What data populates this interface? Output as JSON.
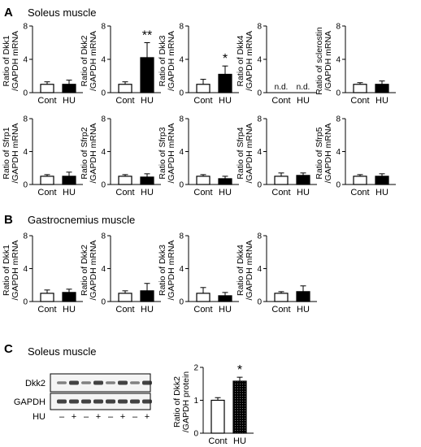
{
  "panels": [
    {
      "letter": "A",
      "title": "Soleus muscle"
    },
    {
      "letter": "B",
      "title": "Gastrocnemius muscle"
    },
    {
      "letter": "C",
      "title": "Soleus muscle"
    }
  ],
  "chart_data": [
    {
      "panel": "A",
      "type": "bar",
      "categories": [
        "Cont",
        "HU"
      ],
      "values": [
        1.0,
        1.0
      ],
      "errors": [
        0.3,
        0.5
      ],
      "ylim": [
        0,
        8
      ],
      "yticks": [
        0,
        4,
        8
      ],
      "ylabel": [
        "Ratio of Dkk1",
        "/GAPDH mRNA"
      ],
      "annotations": [
        "",
        ""
      ],
      "colors": [
        "#ffffff",
        "#000000"
      ]
    },
    {
      "panel": "A",
      "type": "bar",
      "categories": [
        "Cont",
        "HU"
      ],
      "values": [
        1.0,
        4.2
      ],
      "errors": [
        0.3,
        1.8
      ],
      "ylim": [
        0,
        8
      ],
      "yticks": [
        0,
        4,
        8
      ],
      "ylabel": [
        "Ratio of Dkk2",
        "/GAPDH mRNA"
      ],
      "annotations": [
        "",
        "**"
      ],
      "colors": [
        "#ffffff",
        "#000000"
      ]
    },
    {
      "panel": "A",
      "type": "bar",
      "categories": [
        "Cont",
        "HU"
      ],
      "values": [
        1.0,
        2.2
      ],
      "errors": [
        0.6,
        1.0
      ],
      "ylim": [
        0,
        8
      ],
      "yticks": [
        0,
        4,
        8
      ],
      "ylabel": [
        "Ratio of Dkk3",
        "/GAPDH mRNA"
      ],
      "annotations": [
        "",
        "*"
      ],
      "colors": [
        "#ffffff",
        "#000000"
      ]
    },
    {
      "panel": "A",
      "type": "bar",
      "categories": [
        "Cont",
        "HU"
      ],
      "values": [
        null,
        null
      ],
      "errors": [
        null,
        null
      ],
      "ylim": [
        0,
        8
      ],
      "yticks": [
        0,
        4,
        8
      ],
      "ylabel": [
        "Ratio of Dkk4",
        "/GAPDH mRNA"
      ],
      "annotations": [
        "n.d.",
        "n.d."
      ],
      "colors": [
        "#ffffff",
        "#000000"
      ]
    },
    {
      "panel": "A",
      "type": "bar",
      "categories": [
        "Cont",
        "HU"
      ],
      "values": [
        1.0,
        1.0
      ],
      "errors": [
        0.2,
        0.4
      ],
      "ylim": [
        0,
        8
      ],
      "yticks": [
        0,
        4,
        8
      ],
      "ylabel": [
        "Ratio of sclerostin",
        "/GAPDH mRNA"
      ],
      "annotations": [
        "",
        ""
      ],
      "colors": [
        "#ffffff",
        "#000000"
      ]
    },
    {
      "panel": "A",
      "type": "bar",
      "categories": [
        "Cont",
        "HU"
      ],
      "values": [
        1.0,
        1.0
      ],
      "errors": [
        0.2,
        0.5
      ],
      "ylim": [
        0,
        8
      ],
      "yticks": [
        0,
        4,
        8
      ],
      "ylabel": [
        "Ratio of Sfrp1",
        "/GAPDH mRNA"
      ],
      "annotations": [
        "",
        ""
      ],
      "colors": [
        "#ffffff",
        "#000000"
      ]
    },
    {
      "panel": "A",
      "type": "bar",
      "categories": [
        "Cont",
        "HU"
      ],
      "values": [
        1.0,
        0.9
      ],
      "errors": [
        0.2,
        0.4
      ],
      "ylim": [
        0,
        8
      ],
      "yticks": [
        0,
        4,
        8
      ],
      "ylabel": [
        "Ratio of Sfrp2",
        "/GAPDH mRNA"
      ],
      "annotations": [
        "",
        ""
      ],
      "colors": [
        "#ffffff",
        "#000000"
      ]
    },
    {
      "panel": "A",
      "type": "bar",
      "categories": [
        "Cont",
        "HU"
      ],
      "values": [
        1.0,
        0.7
      ],
      "errors": [
        0.2,
        0.3
      ],
      "ylim": [
        0,
        8
      ],
      "yticks": [
        0,
        4,
        8
      ],
      "ylabel": [
        "Ratio of Sfrp3",
        "/GAPDH mRNA"
      ],
      "annotations": [
        "",
        ""
      ],
      "colors": [
        "#ffffff",
        "#000000"
      ]
    },
    {
      "panel": "A",
      "type": "bar",
      "categories": [
        "Cont",
        "HU"
      ],
      "values": [
        1.0,
        1.1
      ],
      "errors": [
        0.4,
        0.3
      ],
      "ylim": [
        0,
        8
      ],
      "yticks": [
        0,
        4,
        8
      ],
      "ylabel": [
        "Ratio of Sfrp4",
        "/GAPDH mRNA"
      ],
      "annotations": [
        "",
        ""
      ],
      "colors": [
        "#ffffff",
        "#000000"
      ]
    },
    {
      "panel": "A",
      "type": "bar",
      "categories": [
        "Cont",
        "HU"
      ],
      "values": [
        1.0,
        1.0
      ],
      "errors": [
        0.2,
        0.3
      ],
      "ylim": [
        0,
        8
      ],
      "yticks": [
        0,
        4,
        8
      ],
      "ylabel": [
        "Ratio of Sfrp5",
        "/GAPDH mRNA"
      ],
      "annotations": [
        "",
        ""
      ],
      "colors": [
        "#ffffff",
        "#000000"
      ]
    },
    {
      "panel": "B",
      "type": "bar",
      "categories": [
        "Cont",
        "HU"
      ],
      "values": [
        1.0,
        1.1
      ],
      "errors": [
        0.4,
        0.4
      ],
      "ylim": [
        0,
        8
      ],
      "yticks": [
        0,
        4,
        8
      ],
      "ylabel": [
        "Ratio of Dkk1",
        "/GAPDH mRNA"
      ],
      "annotations": [
        "",
        ""
      ],
      "colors": [
        "#ffffff",
        "#000000"
      ]
    },
    {
      "panel": "B",
      "type": "bar",
      "categories": [
        "Cont",
        "HU"
      ],
      "values": [
        1.0,
        1.3
      ],
      "errors": [
        0.3,
        0.9
      ],
      "ylim": [
        0,
        8
      ],
      "yticks": [
        0,
        4,
        8
      ],
      "ylabel": [
        "Ratio of Dkk2",
        "/GAPDH mRNA"
      ],
      "annotations": [
        "",
        ""
      ],
      "colors": [
        "#ffffff",
        "#000000"
      ]
    },
    {
      "panel": "B",
      "type": "bar",
      "categories": [
        "Cont",
        "HU"
      ],
      "values": [
        1.0,
        0.7
      ],
      "errors": [
        0.7,
        0.4
      ],
      "ylim": [
        0,
        8
      ],
      "yticks": [
        0,
        4,
        8
      ],
      "ylabel": [
        "Ratio of Dkk3",
        "/GAPDH mRNA"
      ],
      "annotations": [
        "",
        ""
      ],
      "colors": [
        "#ffffff",
        "#000000"
      ]
    },
    {
      "panel": "B",
      "type": "bar",
      "categories": [
        "Cont",
        "HU"
      ],
      "values": [
        1.0,
        1.2
      ],
      "errors": [
        0.2,
        0.7
      ],
      "ylim": [
        0,
        8
      ],
      "yticks": [
        0,
        4,
        8
      ],
      "ylabel": [
        "Ratio of Dkk4",
        "/GAPDH mRNA"
      ],
      "annotations": [
        "",
        ""
      ],
      "colors": [
        "#ffffff",
        "#000000"
      ]
    },
    {
      "panel": "C",
      "type": "bar",
      "categories": [
        "Cont",
        "HU"
      ],
      "values": [
        1.0,
        1.58
      ],
      "errors": [
        0.08,
        0.12
      ],
      "ylim": [
        0,
        2
      ],
      "yticks": [
        0,
        1,
        2
      ],
      "ylabel": [
        "Ratio of Dkk2",
        "/GAPDH protein"
      ],
      "annotations": [
        "",
        "*"
      ],
      "colors": [
        "#ffffff",
        "#000000"
      ],
      "hu_pattern": true
    }
  ],
  "blot": {
    "rows": [
      "Dkk2",
      "GAPDH"
    ],
    "hu_label": "HU",
    "lanes": [
      "–",
      "+",
      "–",
      "+",
      "–",
      "+",
      "–",
      "+"
    ]
  }
}
